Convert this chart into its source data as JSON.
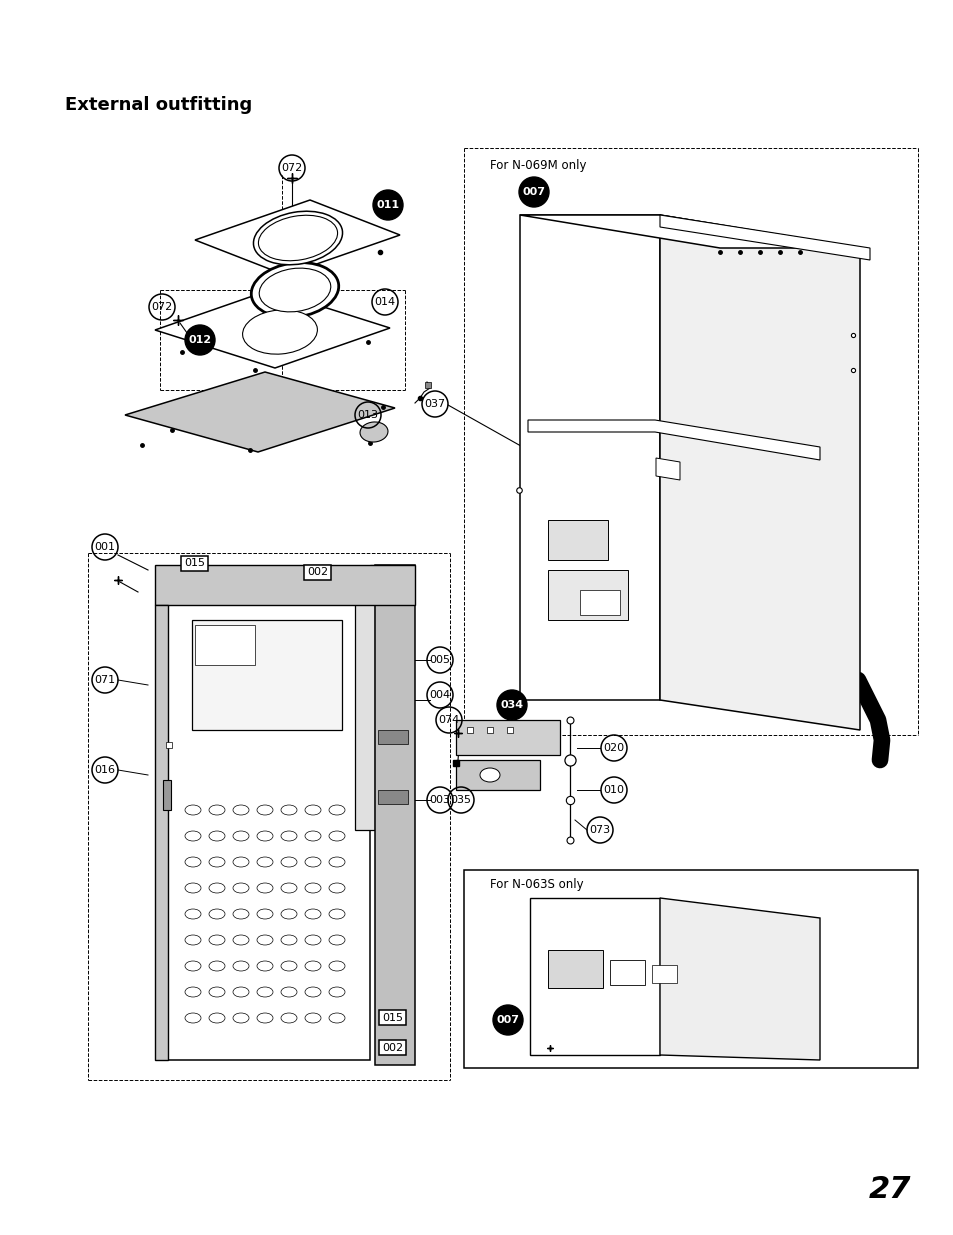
{
  "title": "External outfitting",
  "page_number": "27",
  "bg": "#ffffff",
  "for_n069m": "For N-069M only",
  "for_n063s": "For N-063S only"
}
